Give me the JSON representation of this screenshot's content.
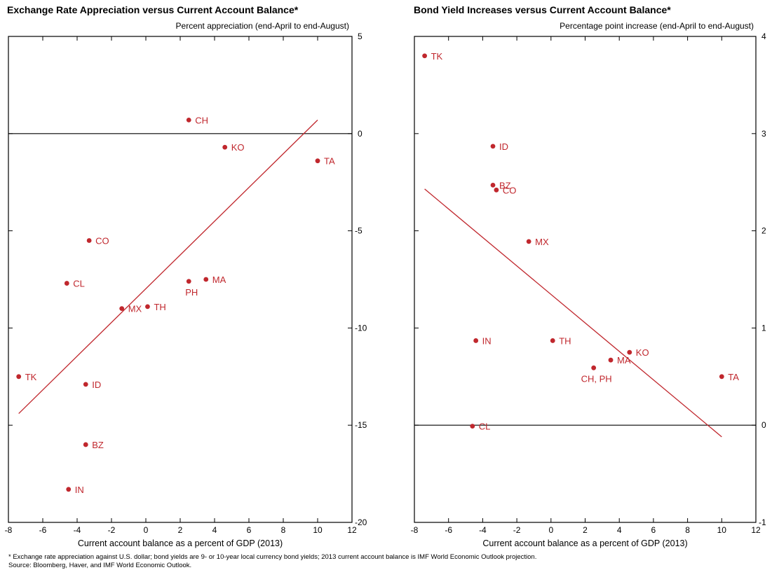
{
  "chart_data": [
    {
      "type": "scatter",
      "title": "Exchange Rate Appreciation versus Current Account Balance*",
      "subtitle": "Percent appreciation (end-April to end-August)",
      "xlabel": "Current account balance as a percent of GDP (2013)",
      "ylabel": "",
      "xlim": [
        -8,
        12
      ],
      "ylim": [
        -20,
        5
      ],
      "xticks": [
        -8,
        -6,
        -4,
        -2,
        0,
        2,
        4,
        6,
        8,
        10,
        12
      ],
      "yticks": [
        5,
        0,
        -5,
        -10,
        -15,
        -20
      ],
      "y_axis_side": "right",
      "zero_line": 0,
      "color": "#c0272d",
      "points": [
        {
          "label": "TK",
          "x": -7.4,
          "y": -12.5
        },
        {
          "label": "IN",
          "x": -4.5,
          "y": -18.3
        },
        {
          "label": "CL",
          "x": -4.6,
          "y": -7.7
        },
        {
          "label": "BZ",
          "x": -3.5,
          "y": -16.0
        },
        {
          "label": "ID",
          "x": -3.5,
          "y": -12.9
        },
        {
          "label": "CO",
          "x": -3.3,
          "y": -5.5
        },
        {
          "label": "MX",
          "x": -1.4,
          "y": -9.0
        },
        {
          "label": "TH",
          "x": 0.1,
          "y": -8.9
        },
        {
          "label": "PH",
          "x": 2.5,
          "y": -7.6
        },
        {
          "label": "CH",
          "x": 2.5,
          "y": 0.7
        },
        {
          "label": "MA",
          "x": 3.5,
          "y": -7.5
        },
        {
          "label": "KO",
          "x": 4.6,
          "y": -0.7
        },
        {
          "label": "TA",
          "x": 10.0,
          "y": -1.4
        }
      ],
      "trendline": {
        "x": [
          -7.4,
          10.0
        ],
        "y": [
          -14.4,
          0.7
        ]
      }
    },
    {
      "type": "scatter",
      "title": "Bond Yield Increases versus Current Account Balance*",
      "subtitle": "Percentage point increase (end-April to end-August)",
      "xlabel": "Current account balance as a percent of GDP (2013)",
      "ylabel": "",
      "xlim": [
        -8,
        12
      ],
      "ylim": [
        -1,
        4
      ],
      "xticks": [
        -8,
        -6,
        -4,
        -2,
        0,
        2,
        4,
        6,
        8,
        10,
        12
      ],
      "yticks": [
        4,
        3,
        2,
        1,
        0,
        -1
      ],
      "y_axis_side": "right",
      "zero_line": 0,
      "color": "#c0272d",
      "points": [
        {
          "label": "TK",
          "x": -7.4,
          "y": 3.8
        },
        {
          "label": "ID",
          "x": -3.4,
          "y": 2.87
        },
        {
          "label": "BZ",
          "x": -3.4,
          "y": 2.47
        },
        {
          "label": "CO",
          "x": -3.2,
          "y": 2.42
        },
        {
          "label": "MX",
          "x": -1.3,
          "y": 1.89
        },
        {
          "label": "IN",
          "x": -4.4,
          "y": 0.87
        },
        {
          "label": "TH",
          "x": 0.1,
          "y": 0.87
        },
        {
          "label": "KO",
          "x": 4.6,
          "y": 0.75
        },
        {
          "label": "MA",
          "x": 3.5,
          "y": 0.67
        },
        {
          "label": "CH, PH",
          "x": 2.5,
          "y": 0.59
        },
        {
          "label": "TA",
          "x": 10.0,
          "y": 0.5
        },
        {
          "label": "CL",
          "x": -4.6,
          "y": -0.01
        }
      ],
      "trendline": {
        "x": [
          -7.4,
          10.0
        ],
        "y": [
          2.43,
          -0.12
        ]
      }
    }
  ],
  "footnote": "* Exchange rate appreciation against U.S. dollar; bond yields are 9- or 10-year local currency bond yields; 2013 current account balance is IMF World Economic Outlook projection.",
  "source": "Source: Bloomberg, Haver, and IMF World Economic Outlook."
}
